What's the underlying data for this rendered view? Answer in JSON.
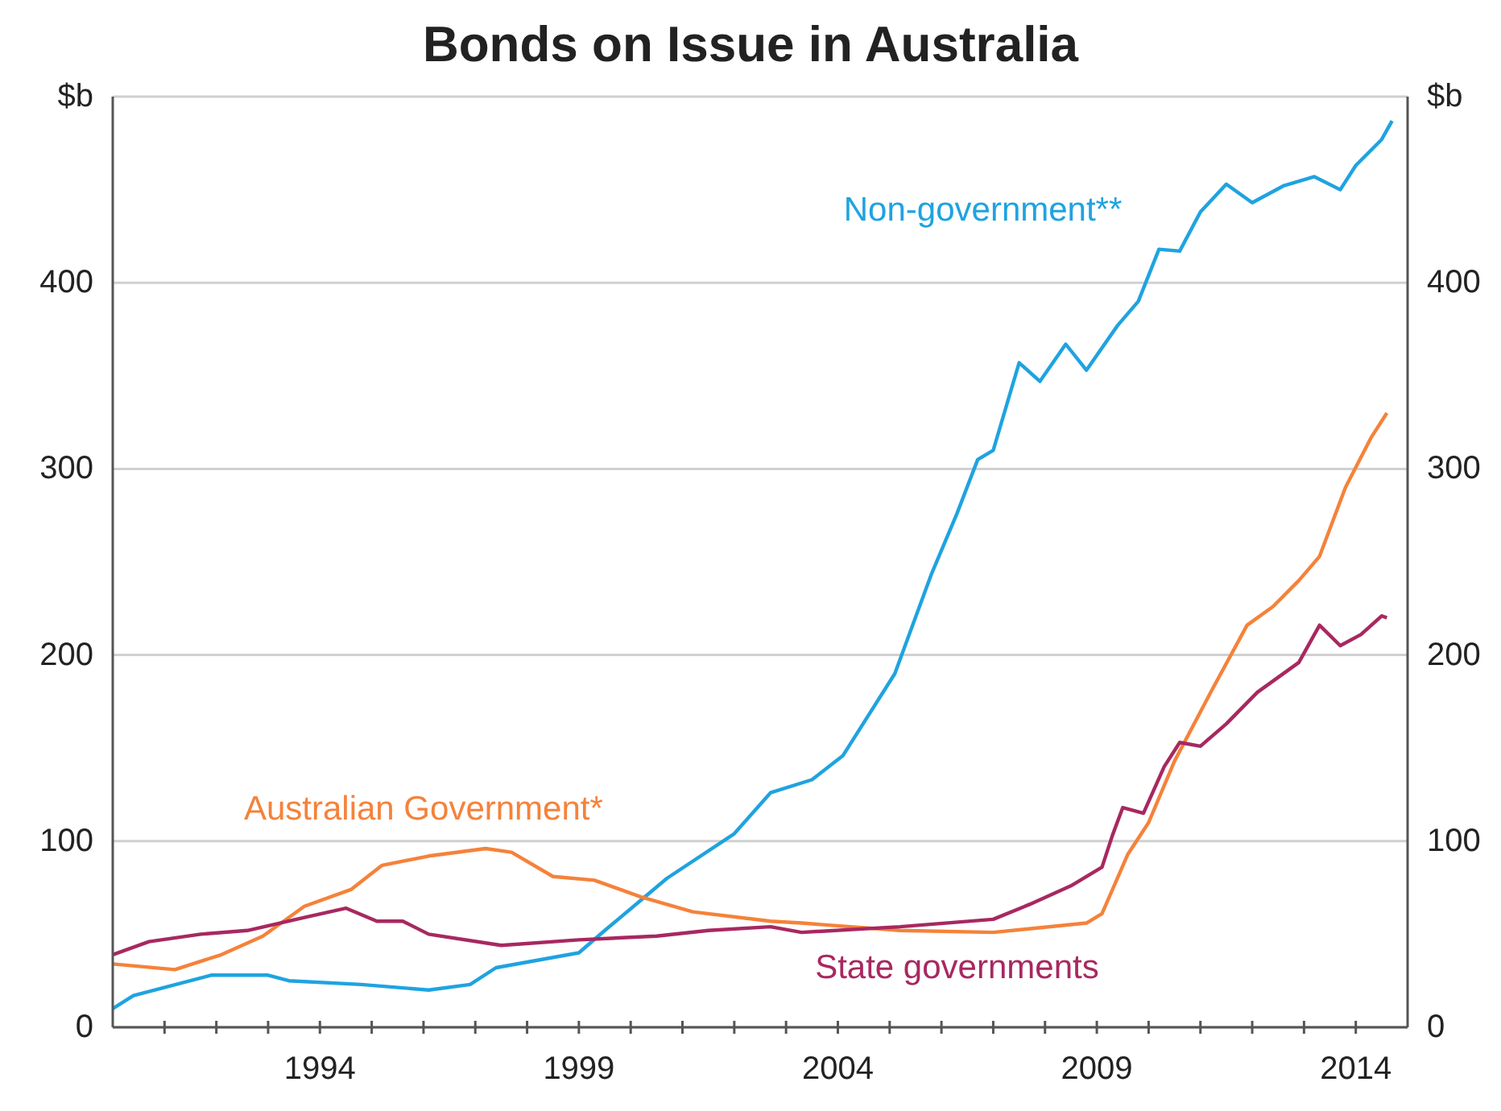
{
  "chart_data": {
    "type": "line",
    "title": "Bonds on Issue in Australia",
    "xlim": [
      1990,
      2015
    ],
    "xticks": [
      {
        "value": 1991,
        "label": null
      },
      {
        "value": 1992,
        "label": null
      },
      {
        "value": 1993,
        "label": null
      },
      1994,
      {
        "value": 1995,
        "label": null
      },
      {
        "value": 1996,
        "label": null
      },
      {
        "value": 1997,
        "label": null
      },
      {
        "value": 1998,
        "label": null
      },
      1999,
      {
        "value": 2000,
        "label": null
      },
      {
        "value": 2001,
        "label": null
      },
      {
        "value": 2002,
        "label": null
      },
      {
        "value": 2003,
        "label": null
      },
      2004,
      {
        "value": 2005,
        "label": null
      },
      {
        "value": 2006,
        "label": null
      },
      {
        "value": 2007,
        "label": null
      },
      {
        "value": 2008,
        "label": null
      },
      2009,
      {
        "value": 2010,
        "label": null
      },
      {
        "value": 2011,
        "label": null
      },
      {
        "value": 2012,
        "label": null
      },
      {
        "value": 2013,
        "label": null
      },
      2014
    ],
    "ylim": [
      0,
      500
    ],
    "yticks": [
      0,
      100,
      200,
      300,
      400,
      {
        "value": 500,
        "label": "$b"
      }
    ],
    "y2lim": [
      0,
      500
    ],
    "y2ticks": [
      0,
      100,
      200,
      300,
      400,
      {
        "value": 500,
        "label": "$b"
      }
    ],
    "grid": "y",
    "legend": false,
    "marker": "none",
    "line_style": "solid",
    "series": [
      {
        "name": "Non-government**",
        "color": "#1fa3e0",
        "x": [
          1990,
          1990.4,
          1991.9,
          1993,
          1993.4,
          1994.8,
          1996.1,
          1996.9,
          1997.4,
          1999,
          1999.5,
          2000.7,
          2002,
          2002.7,
          2003.5,
          2004.1,
          2005.1,
          2005.8,
          2006.3,
          2006.7,
          2007.0,
          2007.5,
          2007.9,
          2008.4,
          2008.8,
          2009.4,
          2009.8,
          2010.2,
          2010.6,
          2011.0,
          2011.5,
          2012.0,
          2012.6,
          2013.2,
          2013.7,
          2014.0,
          2014.5,
          2014.7
        ],
        "values": [
          10,
          17,
          28,
          28,
          25,
          23,
          20,
          23,
          32,
          40,
          52,
          80,
          104,
          126,
          133,
          146,
          190,
          243,
          276,
          305,
          310,
          357,
          347,
          367,
          353,
          377,
          390,
          418,
          417,
          438,
          453,
          443,
          452,
          457,
          450,
          463,
          477,
          487
        ]
      },
      {
        "name": "Australian Government*",
        "color": "#f5823a",
        "x": [
          1990,
          1991.2,
          1992.1,
          1992.9,
          1993.7,
          1994.6,
          1995.2,
          1996.1,
          1997.2,
          1997.7,
          1998.5,
          1999.3,
          2000.2,
          2001.2,
          2002.7,
          2003.3,
          2005.2,
          2007.0,
          2008.8,
          2009.1,
          2009.6,
          2010.0,
          2010.5,
          2011.2,
          2011.9,
          2012.4,
          2012.9,
          2013.3,
          2013.8,
          2014.3,
          2014.6
        ],
        "values": [
          34,
          31,
          39,
          49,
          65,
          74,
          87,
          92,
          96,
          94,
          81,
          79,
          70,
          62,
          57,
          56,
          52,
          51,
          56,
          61,
          93,
          110,
          143,
          180,
          216,
          226,
          240,
          253,
          290,
          317,
          330
        ]
      },
      {
        "name": "State governments",
        "color": "#a82860",
        "x": [
          1990,
          1990.7,
          1991.7,
          1992.6,
          1993.7,
          1994.5,
          1995.1,
          1995.6,
          1996.1,
          1997.5,
          1999,
          2000.5,
          2001.5,
          2002.7,
          2003.3,
          2005.2,
          2007.0,
          2007.7,
          2008.5,
          2009.1,
          2009.3,
          2009.5,
          2009.9,
          2010.3,
          2010.6,
          2011.0,
          2011.5,
          2012.1,
          2012.9,
          2013.3,
          2013.7,
          2014.1,
          2014.5,
          2014.6
        ],
        "values": [
          39,
          46,
          50,
          52,
          59,
          64,
          57,
          57,
          50,
          44,
          47,
          49,
          52,
          54,
          51,
          54,
          58,
          66,
          76,
          86,
          103,
          118,
          115,
          140,
          153,
          151,
          163,
          180,
          196,
          216,
          205,
          211,
          221,
          220
        ]
      }
    ]
  }
}
